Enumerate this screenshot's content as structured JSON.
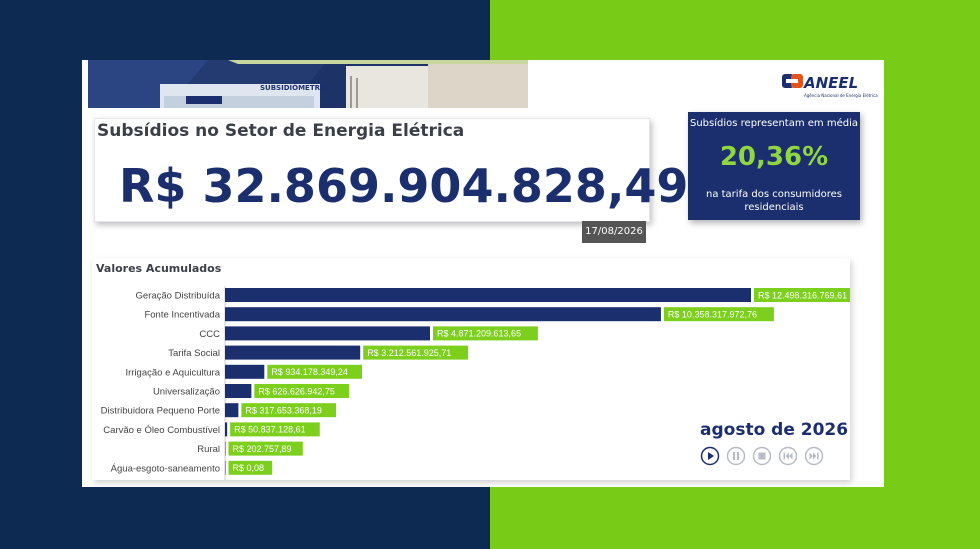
{
  "colors": {
    "dark_blue": "#0c2a52",
    "green": "#78cc18",
    "navy": "#1b2f6e",
    "label_green": "#7ccf1c"
  },
  "banner": {
    "photo_caption": "SUBSIDIÔMETRO",
    "logo_text": "ANEEL",
    "logo_subtitle": "Agência Nacional de Energia Elétrica"
  },
  "header": {
    "title": "Subsídios no Setor de Energia Elétrica",
    "total": "R$ 32.869.904.828,49",
    "date": "17/08/2026"
  },
  "stat": {
    "top": "Subsídios representam em média",
    "percent": "20,36%",
    "bottom": "na tarifa dos consumidores residenciais"
  },
  "chart_data": {
    "type": "bar",
    "title": "Valores Acumulados",
    "orientation": "horizontal",
    "categories": [
      "Geração Distribuída",
      "Fonte Incentivada",
      "CCC",
      "Tarifa Social",
      "Irrigação e Aquicultura",
      "Universalização",
      "Distribuidora Pequeno Porte",
      "Carvão e Óleo Combustível",
      "Rural",
      "Água-esgoto-saneamento"
    ],
    "values": [
      12498316769.61,
      10358317972.76,
      4871209613.65,
      3212561925.71,
      934178349.24,
      626626942.75,
      317653368.19,
      50837128.61,
      202757.89,
      0.08
    ],
    "value_labels": [
      "R$ 12.498.316.769,61",
      "R$ 10.358.317.972,76",
      "R$ 4.871.209.613,65",
      "R$ 3.212.561.925,71",
      "R$ 934.178.349,24",
      "R$ 626.626.942,75",
      "R$ 317.653.368,19",
      "R$ 50.837.128,61",
      "R$ 202.757,89",
      "R$ 0,08"
    ],
    "xlim": [
      0,
      12498316769.61
    ]
  },
  "player": {
    "month": "agosto de 2026",
    "controls": [
      "play-icon",
      "pause-icon",
      "stop-icon",
      "skip-back-icon",
      "skip-forward-icon"
    ]
  }
}
